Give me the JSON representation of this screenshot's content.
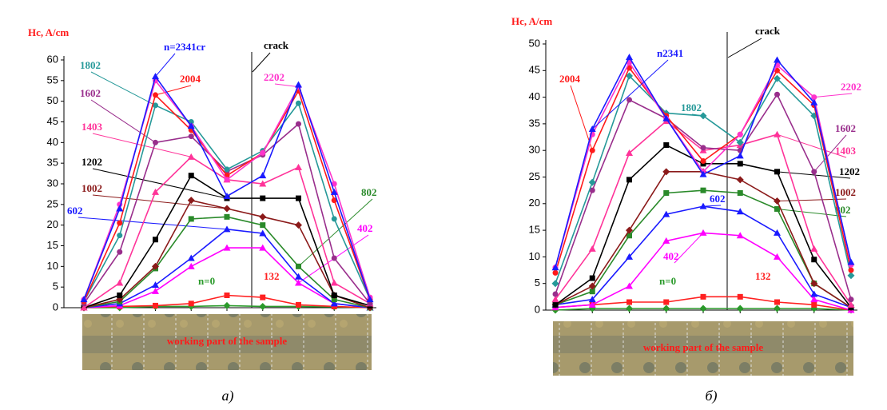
{
  "chart_data": [
    {
      "type": "line",
      "y_label": "Hc, A/cm",
      "annotation": "crack",
      "strip_label": "working part of the sample",
      "caption": "а)",
      "categories": [
        null,
        null,
        null,
        null,
        null,
        null,
        null,
        null,
        null
      ],
      "ylim": [
        0,
        60
      ],
      "yticks": [
        0,
        5,
        10,
        15,
        20,
        25,
        30,
        35,
        40,
        45,
        50,
        55,
        60
      ],
      "series": [
        {
          "name": "n=0",
          "color": "#2a9a2a",
          "marker": "diamond",
          "values": [
            0,
            0,
            0.3,
            0.3,
            0.5,
            0.3,
            0.3,
            0.2,
            0
          ]
        },
        {
          "name": "132",
          "color": "#ff2020",
          "marker": "square",
          "values": [
            0,
            0.3,
            0.5,
            1,
            3,
            2.5,
            0.7,
            0.3,
            0
          ]
        },
        {
          "name": "402",
          "color": "#ff00ff",
          "marker": "triangle",
          "values": [
            0,
            0.5,
            4,
            10,
            14.5,
            14.5,
            6,
            1,
            0
          ]
        },
        {
          "name": "602",
          "color": "#1a1aff",
          "marker": "triangle",
          "values": [
            0,
            1,
            5.5,
            12,
            19,
            18,
            7.5,
            1,
            0
          ]
        },
        {
          "name": "802",
          "color": "#2a8a2a",
          "marker": "square",
          "values": [
            0,
            1.5,
            9.5,
            21.5,
            22,
            20,
            10,
            2,
            0
          ]
        },
        {
          "name": "1002",
          "color": "#8b1a1a",
          "marker": "diamond",
          "values": [
            0,
            2,
            10,
            26,
            24,
            22,
            20,
            3,
            0
          ]
        },
        {
          "name": "1202",
          "color": "#000000",
          "marker": "square",
          "values": [
            0,
            3,
            16.5,
            32,
            26.5,
            26.5,
            26.5,
            3,
            0.5
          ]
        },
        {
          "name": "1403",
          "color": "#ff3399",
          "marker": "triangle",
          "values": [
            0,
            6,
            28,
            36.5,
            31,
            30,
            34,
            6,
            1
          ]
        },
        {
          "name": "1602",
          "color": "#992e8c",
          "marker": "circle",
          "values": [
            1,
            13.5,
            40,
            41.5,
            33,
            37,
            44.5,
            12,
            1
          ]
        },
        {
          "name": "1802",
          "color": "#269999",
          "marker": "circle",
          "values": [
            1.5,
            17.5,
            49,
            45,
            33.5,
            38,
            49.5,
            21.5,
            2
          ]
        },
        {
          "name": "2004",
          "color": "#ff1a1a",
          "marker": "circle",
          "values": [
            1.5,
            20.5,
            51.5,
            43,
            32,
            37.5,
            52.5,
            26,
            2
          ]
        },
        {
          "name": "2202",
          "color": "#ff33cc",
          "marker": "circle",
          "values": [
            2,
            25,
            55,
            44,
            31,
            37.5,
            53.5,
            30,
            2.5
          ]
        },
        {
          "name": "n=2341cr",
          "color": "#1a1aff",
          "marker": "triangle",
          "values": [
            2,
            24,
            56,
            44,
            27,
            32,
            54,
            28,
            2
          ]
        }
      ]
    },
    {
      "type": "line",
      "y_label": "Hc, A/cm",
      "annotation": "crack",
      "strip_label": "working part of the sample",
      "caption": "б)",
      "categories": [
        null,
        null,
        null,
        null,
        null,
        null,
        null,
        null,
        null
      ],
      "ylim": [
        0,
        50
      ],
      "yticks": [
        0,
        5,
        10,
        15,
        20,
        25,
        30,
        35,
        40,
        45,
        50
      ],
      "series": [
        {
          "name": "n=0",
          "color": "#2a9a2a",
          "marker": "diamond",
          "values": [
            0,
            0.3,
            0.3,
            0.3,
            0.3,
            0.3,
            0.3,
            0.3,
            0
          ]
        },
        {
          "name": "132",
          "color": "#ff2020",
          "marker": "square",
          "values": [
            0.5,
            1,
            1.5,
            1.5,
            2.5,
            2.5,
            1.5,
            1,
            0
          ]
        },
        {
          "name": "402",
          "color": "#ff00ff",
          "marker": "triangle",
          "values": [
            0.5,
            1,
            4.5,
            13,
            14.5,
            14,
            10,
            2,
            0
          ]
        },
        {
          "name": "602",
          "color": "#1a1aff",
          "marker": "triangle",
          "values": [
            1,
            2,
            10,
            18,
            19.5,
            18.5,
            14.5,
            3,
            0.5
          ]
        },
        {
          "name": "802",
          "color": "#2a8a2a",
          "marker": "square",
          "values": [
            1,
            3.5,
            14,
            22,
            22.5,
            22,
            19,
            5,
            0.5
          ]
        },
        {
          "name": "1002",
          "color": "#8b1a1a",
          "marker": "diamond",
          "values": [
            1,
            4.5,
            15,
            26,
            26,
            24.5,
            20.5,
            5,
            0.5
          ]
        },
        {
          "name": "1202",
          "color": "#000000",
          "marker": "square",
          "values": [
            1,
            6,
            24.5,
            31,
            27.5,
            27.5,
            26,
            9.5,
            0.5
          ]
        },
        {
          "name": "1403",
          "color": "#ff3399",
          "marker": "triangle",
          "values": [
            2,
            11.5,
            29.5,
            35.5,
            30,
            31,
            33,
            11.5,
            1
          ]
        },
        {
          "name": "1602",
          "color": "#992e8c",
          "marker": "circle",
          "values": [
            3,
            22.5,
            39.5,
            36,
            30.5,
            30,
            40.5,
            26,
            2
          ]
        },
        {
          "name": "1802",
          "color": "#269999",
          "marker": "diamond",
          "values": [
            5,
            24,
            44,
            37,
            36.5,
            31.5,
            43.5,
            36.5,
            6.5
          ]
        },
        {
          "name": "2004",
          "color": "#ff1a1a",
          "marker": "circle",
          "values": [
            7,
            30,
            45.5,
            36.5,
            28,
            33,
            45,
            38.5,
            7.5
          ]
        },
        {
          "name": "2202",
          "color": "#ff33cc",
          "marker": "circle",
          "values": [
            8,
            33,
            46.5,
            36,
            26,
            33,
            46,
            40,
            8.5
          ]
        },
        {
          "name": "n2341",
          "color": "#1a1aff",
          "marker": "triangle",
          "values": [
            8,
            34,
            47.5,
            36,
            25.5,
            29,
            47,
            39,
            9
          ]
        }
      ]
    }
  ]
}
